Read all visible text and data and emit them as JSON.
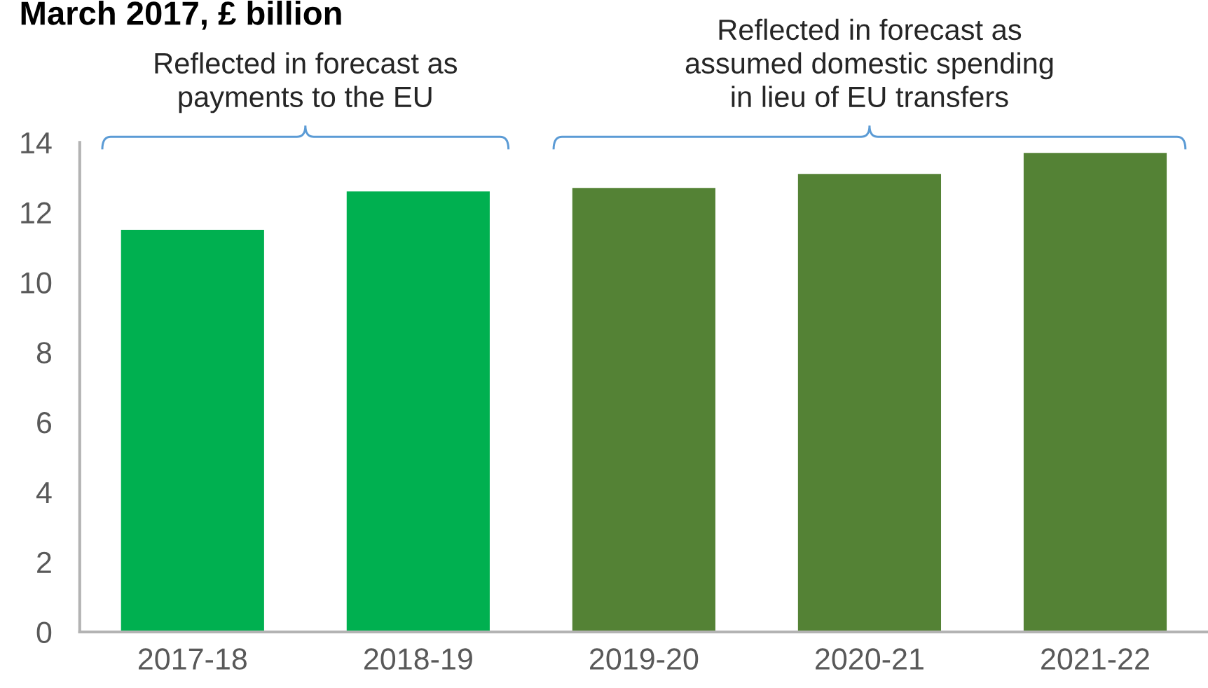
{
  "chart_data": {
    "type": "bar",
    "title": "March 2017, £ billion",
    "categories": [
      "2017-18",
      "2018-19",
      "2019-20",
      "2020-21",
      "2021-22"
    ],
    "values": [
      11.5,
      12.6,
      12.7,
      13.1,
      13.7
    ],
    "colors": [
      "#00b050",
      "#00b050",
      "#548235",
      "#548235",
      "#548235"
    ],
    "ylim": [
      0,
      14
    ],
    "yticks": [
      0,
      2,
      4,
      6,
      8,
      10,
      12,
      14
    ],
    "annotations": [
      "Reflected in forecast as\npayments to the EU",
      "Reflected in forecast as\nassumed domestic spending\nin lieu of EU transfers"
    ]
  }
}
